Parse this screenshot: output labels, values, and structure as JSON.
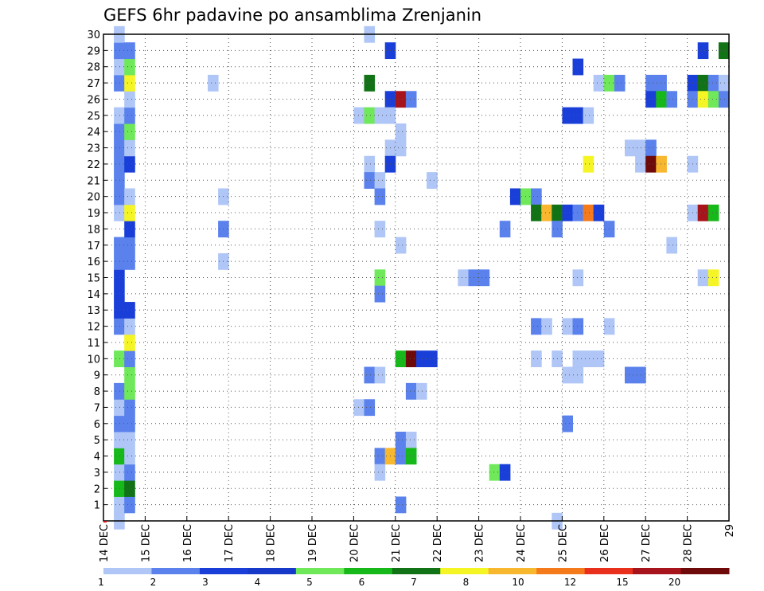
{
  "chart_data": {
    "type": "heatmap",
    "title": "GEFS 6hr padavine po ansamblima Zrenjanin",
    "x_tick_labels": [
      "14 DEC",
      "15 DEC",
      "16 DEC",
      "17 DEC",
      "18 DEC",
      "19 DEC",
      "20 DEC",
      "21 DEC",
      "22 DEC",
      "23 DEC",
      "24 DEC",
      "25 DEC",
      "26 DEC",
      "27 DEC",
      "28 DEC",
      "29"
    ],
    "x_range_days": [
      14,
      29
    ],
    "y_tick_labels": [
      "1",
      "2",
      "3",
      "4",
      "5",
      "6",
      "7",
      "8",
      "9",
      "10",
      "11",
      "12",
      "13",
      "14",
      "15",
      "16",
      "17",
      "18",
      "19",
      "20",
      "21",
      "22",
      "23",
      "24",
      "25",
      "26",
      "27",
      "28",
      "29",
      "30"
    ],
    "y_range": [
      0,
      30
    ],
    "grid": true,
    "colorbar": {
      "labels": [
        "1",
        "2",
        "3",
        "4",
        "5",
        "6",
        "7",
        "8",
        "10",
        "12",
        "15",
        "20"
      ],
      "colors": [
        "#afc6f7",
        "#5b82ec",
        "#1a3fd8",
        "#1739c9",
        "#6fe85a",
        "#17b91a",
        "#117316",
        "#f5f526",
        "#f7b72e",
        "#f57a1c",
        "#e8301c",
        "#a8141c",
        "#6e0a0a"
      ]
    },
    "cells": [
      [
        14.25,
        1,
        0
      ],
      [
        14.25,
        2,
        5
      ],
      [
        14.25,
        3,
        0
      ],
      [
        14.25,
        4,
        5
      ],
      [
        14.25,
        5,
        0
      ],
      [
        14.25,
        6,
        1
      ],
      [
        14.25,
        7,
        0
      ],
      [
        14.25,
        8,
        1
      ],
      [
        14.25,
        10,
        4
      ],
      [
        14.25,
        12,
        1
      ],
      [
        14.25,
        13,
        2
      ],
      [
        14.25,
        14,
        2
      ],
      [
        14.25,
        15,
        2
      ],
      [
        14.25,
        16,
        1
      ],
      [
        14.25,
        17,
        1
      ],
      [
        14.25,
        19,
        0
      ],
      [
        14.25,
        20,
        1
      ],
      [
        14.25,
        21,
        1
      ],
      [
        14.25,
        22,
        1
      ],
      [
        14.25,
        23,
        1
      ],
      [
        14.25,
        24,
        1
      ],
      [
        14.25,
        25,
        0
      ],
      [
        14.25,
        27,
        1
      ],
      [
        14.25,
        28,
        0
      ],
      [
        14.25,
        29,
        1
      ],
      [
        14.25,
        30,
        0
      ],
      [
        14.25,
        0,
        0
      ],
      [
        14.5,
        1,
        1
      ],
      [
        14.5,
        2,
        6
      ],
      [
        14.5,
        3,
        1
      ],
      [
        14.5,
        4,
        0
      ],
      [
        14.5,
        5,
        0
      ],
      [
        14.5,
        6,
        1
      ],
      [
        14.5,
        7,
        1
      ],
      [
        14.5,
        8,
        4
      ],
      [
        14.5,
        9,
        4
      ],
      [
        14.5,
        10,
        1
      ],
      [
        14.5,
        11,
        7
      ],
      [
        14.5,
        12,
        0
      ],
      [
        14.5,
        13,
        2
      ],
      [
        14.5,
        16,
        1
      ],
      [
        14.5,
        17,
        1
      ],
      [
        14.5,
        18,
        2
      ],
      [
        14.5,
        19,
        7
      ],
      [
        14.5,
        20,
        0
      ],
      [
        14.5,
        22,
        2
      ],
      [
        14.5,
        23,
        0
      ],
      [
        14.5,
        24,
        4
      ],
      [
        14.5,
        25,
        1
      ],
      [
        14.5,
        26,
        0
      ],
      [
        14.5,
        27,
        7
      ],
      [
        14.5,
        28,
        4
      ],
      [
        14.5,
        29,
        1
      ],
      [
        16.5,
        27,
        0
      ],
      [
        16.75,
        20,
        0
      ],
      [
        16.75,
        18,
        1
      ],
      [
        16.75,
        16,
        0
      ],
      [
        20.0,
        25,
        0
      ],
      [
        20.0,
        7,
        0
      ],
      [
        20.25,
        30,
        0
      ],
      [
        20.25,
        25,
        4
      ],
      [
        20.25,
        22,
        0
      ],
      [
        20.25,
        21,
        1
      ],
      [
        20.25,
        9,
        1
      ],
      [
        20.25,
        7,
        1
      ],
      [
        20.25,
        27,
        6
      ],
      [
        20.5,
        25,
        0
      ],
      [
        20.5,
        21,
        0
      ],
      [
        20.5,
        20,
        1
      ],
      [
        20.5,
        18,
        0
      ],
      [
        20.5,
        15,
        4
      ],
      [
        20.5,
        14,
        1
      ],
      [
        20.5,
        9,
        0
      ],
      [
        20.5,
        4,
        1
      ],
      [
        20.5,
        3,
        0
      ],
      [
        20.75,
        29,
        2
      ],
      [
        20.75,
        26,
        2
      ],
      [
        20.75,
        25,
        0
      ],
      [
        20.75,
        23,
        0
      ],
      [
        20.75,
        22,
        2
      ],
      [
        20.75,
        4,
        8
      ],
      [
        21.0,
        26,
        11
      ],
      [
        21.0,
        24,
        0
      ],
      [
        21.0,
        23,
        0
      ],
      [
        21.0,
        17,
        0
      ],
      [
        21.0,
        10,
        5
      ],
      [
        21.0,
        5,
        1
      ],
      [
        21.0,
        4,
        1
      ],
      [
        21.0,
        1,
        1
      ],
      [
        21.25,
        26,
        1
      ],
      [
        21.25,
        10,
        12
      ],
      [
        21.25,
        8,
        1
      ],
      [
        21.25,
        5,
        0
      ],
      [
        21.25,
        4,
        5
      ],
      [
        21.5,
        10,
        2
      ],
      [
        21.5,
        8,
        0
      ],
      [
        21.75,
        10,
        2
      ],
      [
        21.75,
        21,
        0
      ],
      [
        22.5,
        15,
        0
      ],
      [
        22.75,
        15,
        1
      ],
      [
        23.0,
        15,
        1
      ],
      [
        23.25,
        3,
        4
      ],
      [
        23.5,
        3,
        2
      ],
      [
        23.5,
        18,
        1
      ],
      [
        23.75,
        20,
        2
      ],
      [
        24.0,
        20,
        4
      ],
      [
        24.25,
        20,
        1
      ],
      [
        24.25,
        19,
        6
      ],
      [
        24.25,
        12,
        1
      ],
      [
        24.25,
        10,
        0
      ],
      [
        24.5,
        19,
        8
      ],
      [
        24.5,
        12,
        0
      ],
      [
        24.75,
        19,
        6
      ],
      [
        24.75,
        18,
        1
      ],
      [
        24.75,
        10,
        0
      ],
      [
        24.75,
        0,
        0
      ],
      [
        25.0,
        25,
        2
      ],
      [
        25.0,
        19,
        2
      ],
      [
        25.0,
        12,
        0
      ],
      [
        25.0,
        9,
        0
      ],
      [
        25.0,
        6,
        1
      ],
      [
        25.25,
        28,
        2
      ],
      [
        25.25,
        25,
        2
      ],
      [
        25.25,
        19,
        1
      ],
      [
        25.25,
        15,
        0
      ],
      [
        25.25,
        12,
        1
      ],
      [
        25.25,
        9,
        0
      ],
      [
        25.25,
        10,
        0
      ],
      [
        25.5,
        25,
        0
      ],
      [
        25.5,
        22,
        7
      ],
      [
        25.5,
        19,
        9
      ],
      [
        25.5,
        10,
        0
      ],
      [
        25.75,
        27,
        0
      ],
      [
        25.75,
        19,
        2
      ],
      [
        25.75,
        10,
        0
      ],
      [
        26.0,
        27,
        4
      ],
      [
        26.0,
        18,
        1
      ],
      [
        26.0,
        12,
        0
      ],
      [
        26.25,
        27,
        1
      ],
      [
        26.5,
        23,
        0
      ],
      [
        26.5,
        9,
        1
      ],
      [
        26.75,
        23,
        0
      ],
      [
        26.75,
        22,
        0
      ],
      [
        26.75,
        9,
        1
      ],
      [
        27.0,
        27,
        1
      ],
      [
        27.0,
        26,
        2
      ],
      [
        27.0,
        23,
        1
      ],
      [
        27.0,
        22,
        12
      ],
      [
        27.25,
        27,
        1
      ],
      [
        27.25,
        26,
        5
      ],
      [
        27.25,
        22,
        8
      ],
      [
        27.5,
        26,
        1
      ],
      [
        27.5,
        17,
        0
      ],
      [
        28.0,
        22,
        0
      ],
      [
        28.0,
        19,
        0
      ],
      [
        28.0,
        27,
        2
      ],
      [
        28.0,
        26,
        1
      ],
      [
        28.25,
        29,
        2
      ],
      [
        28.25,
        27,
        6
      ],
      [
        28.25,
        26,
        7
      ],
      [
        28.25,
        19,
        11
      ],
      [
        28.25,
        15,
        0
      ],
      [
        28.5,
        27,
        1
      ],
      [
        28.5,
        26,
        4
      ],
      [
        28.5,
        19,
        5
      ],
      [
        28.5,
        15,
        7
      ],
      [
        28.75,
        29,
        6
      ],
      [
        28.75,
        27,
        0
      ],
      [
        28.75,
        26,
        1
      ]
    ]
  }
}
